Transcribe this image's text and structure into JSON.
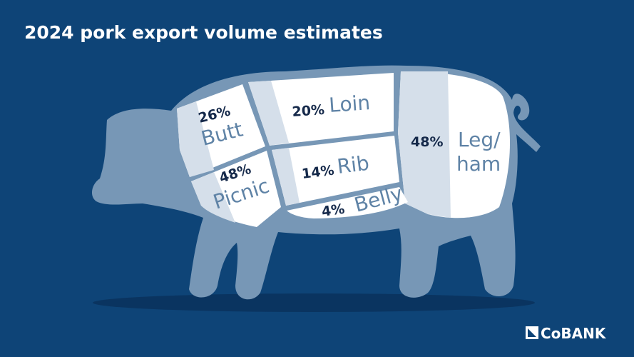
{
  "title": "2024 pork export volume estimates",
  "cuts": [
    {
      "name": "Butt",
      "share": "26%"
    },
    {
      "name": "Loin",
      "share": "20%"
    },
    {
      "name": [
        "Leg/",
        "ham"
      ],
      "share": "48%"
    },
    {
      "name": "Picnic",
      "share": "48%"
    },
    {
      "name": "Rib",
      "share": "14%"
    },
    {
      "name": "Belly",
      "share": "4%"
    }
  ],
  "logo": "CoBANK"
}
